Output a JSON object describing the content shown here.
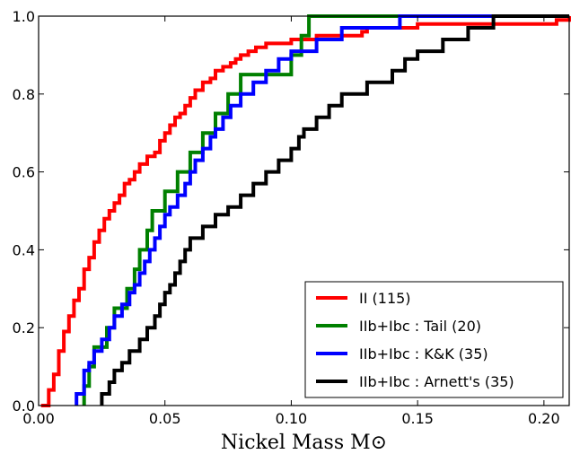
{
  "chart_data": {
    "type": "line",
    "step": true,
    "title": "",
    "xlabel": "Nickel Mass M⊙",
    "ylabel": "",
    "xlim": [
      0,
      0.21
    ],
    "ylim": [
      0,
      1
    ],
    "grid": false,
    "legend_position": "bottom-right",
    "x_ticks": [
      "0.00",
      "0.05",
      "0.10",
      "0.15",
      "0.20"
    ],
    "y_ticks": [
      "0.0",
      "0.2",
      "0.4",
      "0.6",
      "0.8",
      "1.0"
    ],
    "series": [
      {
        "name": "II (115)",
        "color": "#ff0000",
        "x": [
          0.001,
          0.004,
          0.006,
          0.008,
          0.01,
          0.012,
          0.014,
          0.016,
          0.018,
          0.02,
          0.022,
          0.024,
          0.026,
          0.028,
          0.03,
          0.032,
          0.034,
          0.036,
          0.038,
          0.04,
          0.043,
          0.046,
          0.048,
          0.05,
          0.052,
          0.054,
          0.056,
          0.058,
          0.06,
          0.062,
          0.065,
          0.068,
          0.07,
          0.073,
          0.076,
          0.078,
          0.08,
          0.083,
          0.086,
          0.09,
          0.095,
          0.1,
          0.105,
          0.11,
          0.12,
          0.128,
          0.13,
          0.135,
          0.15,
          0.16,
          0.17,
          0.18,
          0.19,
          0.2,
          0.205,
          0.21
        ],
        "y": [
          0.0,
          0.04,
          0.08,
          0.14,
          0.19,
          0.23,
          0.27,
          0.3,
          0.35,
          0.38,
          0.42,
          0.45,
          0.48,
          0.5,
          0.52,
          0.54,
          0.57,
          0.58,
          0.6,
          0.62,
          0.64,
          0.65,
          0.68,
          0.7,
          0.72,
          0.74,
          0.75,
          0.77,
          0.79,
          0.81,
          0.83,
          0.84,
          0.86,
          0.87,
          0.88,
          0.89,
          0.9,
          0.91,
          0.92,
          0.93,
          0.93,
          0.94,
          0.94,
          0.95,
          0.95,
          0.96,
          0.97,
          0.97,
          0.98,
          0.98,
          0.98,
          0.98,
          0.98,
          0.98,
          0.99,
          1.0
        ]
      },
      {
        "name": "IIb+Ibc : Tail (20)",
        "color": "#008000",
        "x": [
          0.018,
          0.02,
          0.022,
          0.027,
          0.03,
          0.035,
          0.038,
          0.04,
          0.043,
          0.045,
          0.05,
          0.055,
          0.06,
          0.065,
          0.07,
          0.075,
          0.08,
          0.1,
          0.104,
          0.107
        ],
        "y": [
          0.05,
          0.1,
          0.15,
          0.2,
          0.25,
          0.3,
          0.35,
          0.4,
          0.45,
          0.5,
          0.55,
          0.6,
          0.65,
          0.7,
          0.75,
          0.8,
          0.85,
          0.9,
          0.95,
          1.0
        ]
      },
      {
        "name": "IIb+Ibc : K&K (35)",
        "color": "#0000ff",
        "x": [
          0.015,
          0.018,
          0.02,
          0.022,
          0.025,
          0.028,
          0.03,
          0.033,
          0.036,
          0.038,
          0.04,
          0.042,
          0.044,
          0.046,
          0.048,
          0.05,
          0.052,
          0.055,
          0.058,
          0.06,
          0.062,
          0.065,
          0.068,
          0.07,
          0.073,
          0.076,
          0.08,
          0.085,
          0.09,
          0.095,
          0.1,
          0.11,
          0.12,
          0.13,
          0.143
        ],
        "y": [
          0.03,
          0.09,
          0.11,
          0.14,
          0.17,
          0.2,
          0.23,
          0.26,
          0.29,
          0.31,
          0.34,
          0.37,
          0.4,
          0.43,
          0.46,
          0.49,
          0.51,
          0.54,
          0.57,
          0.6,
          0.63,
          0.66,
          0.69,
          0.71,
          0.74,
          0.77,
          0.8,
          0.83,
          0.86,
          0.89,
          0.91,
          0.94,
          0.97,
          0.97,
          1.0
        ]
      },
      {
        "name": "IIb+Ibc : Arnett's (35)",
        "color": "#000000",
        "x": [
          0.025,
          0.028,
          0.03,
          0.033,
          0.036,
          0.04,
          0.043,
          0.046,
          0.048,
          0.05,
          0.052,
          0.054,
          0.056,
          0.058,
          0.06,
          0.065,
          0.07,
          0.075,
          0.08,
          0.085,
          0.09,
          0.095,
          0.1,
          0.103,
          0.105,
          0.11,
          0.115,
          0.12,
          0.13,
          0.14,
          0.145,
          0.15,
          0.16,
          0.17,
          0.18
        ],
        "y": [
          0.03,
          0.06,
          0.09,
          0.11,
          0.14,
          0.17,
          0.2,
          0.23,
          0.26,
          0.29,
          0.31,
          0.34,
          0.37,
          0.4,
          0.43,
          0.46,
          0.49,
          0.51,
          0.54,
          0.57,
          0.6,
          0.63,
          0.66,
          0.69,
          0.71,
          0.74,
          0.77,
          0.8,
          0.83,
          0.86,
          0.89,
          0.91,
          0.94,
          0.97,
          1.0
        ]
      }
    ]
  }
}
